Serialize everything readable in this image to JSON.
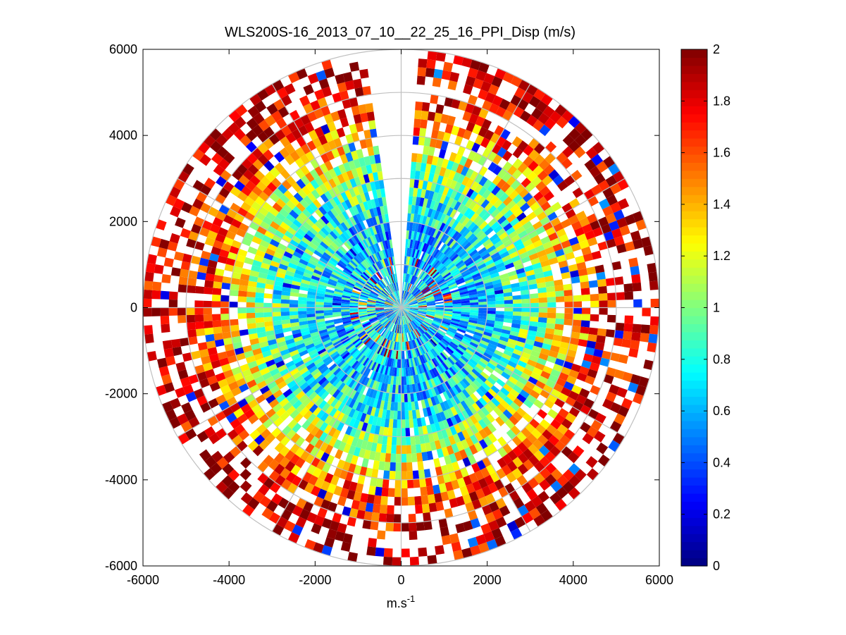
{
  "chart_data": {
    "type": "heatmap",
    "subtype": "polar-ppi",
    "title": "WLS200S-16_2013_07_10__22_25_16_PPI_Disp (m/s)",
    "xlabel_base": "m.s",
    "xlabel_exp": "-1",
    "ylabel": "",
    "xlim": [
      -6000,
      6000
    ],
    "ylim": [
      -6000,
      6000
    ],
    "xticks": [
      -6000,
      -4000,
      -2000,
      0,
      2000,
      4000,
      6000
    ],
    "yticks": [
      -6000,
      -4000,
      -2000,
      0,
      2000,
      4000,
      6000
    ],
    "polar_grid": {
      "rings": [
        1000,
        2000,
        3000,
        4000,
        5000,
        6000
      ],
      "spokes_deg": [
        0,
        30,
        60,
        90,
        120,
        150,
        180,
        210,
        240,
        270,
        300,
        330
      ]
    },
    "data_extent": {
      "max_range": 6000,
      "range_gate": 200,
      "azimuth_step_deg": 2,
      "missing_sector_deg": [
        352,
        4
      ]
    },
    "colorbar": {
      "min": 0,
      "max": 2,
      "ticks": [
        0,
        0.2,
        0.4,
        0.6,
        0.8,
        1,
        1.2,
        1.4,
        1.6,
        1.8,
        2
      ],
      "tick_labels": [
        "0",
        "0.2",
        "0.4",
        "0.6",
        "0.8",
        "1",
        "1.2",
        "1.4",
        "1.6",
        "1.8",
        "2"
      ],
      "colormap": "jet"
    },
    "value_profile": [
      {
        "range": 500,
        "value": 0.7
      },
      {
        "range": 1500,
        "value": 0.65
      },
      {
        "range": 2500,
        "value": 0.8
      },
      {
        "range": 3500,
        "value": 1.15
      },
      {
        "range": 4500,
        "value": 1.6
      },
      {
        "range": 5500,
        "value": 1.9
      }
    ]
  }
}
